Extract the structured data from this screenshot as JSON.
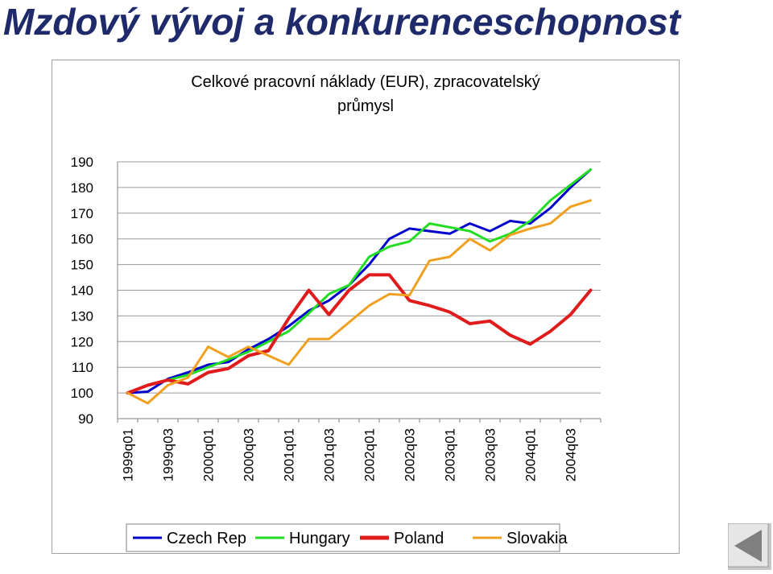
{
  "slide": {
    "title": "Mzdový vývoj a konkurenceschopnost"
  },
  "chart_data": {
    "type": "line",
    "title_lines": [
      "Celkové pracovní náklady (EUR), zpracovatelský",
      "průmysl"
    ],
    "xlabel": "",
    "ylabel": "",
    "ylim": [
      90,
      190
    ],
    "yticks": [
      90,
      100,
      110,
      120,
      130,
      140,
      150,
      160,
      170,
      180,
      190
    ],
    "grid": true,
    "legend_position": "bottom",
    "x_tick_labels": [
      "1999q01",
      "1999q03",
      "2000q01",
      "2000q03",
      "2001q01",
      "2001q03",
      "2002q01",
      "2002q03",
      "2003q01",
      "2003q03",
      "2004q01",
      "2004q03"
    ],
    "x": [
      "1999q01",
      "1999q02",
      "1999q03",
      "1999q04",
      "2000q01",
      "2000q02",
      "2000q03",
      "2000q04",
      "2001q01",
      "2001q02",
      "2001q03",
      "2001q04",
      "2002q01",
      "2002q02",
      "2002q03",
      "2002q04",
      "2003q01",
      "2003q02",
      "2003q03",
      "2003q04",
      "2004q01",
      "2004q02",
      "2004q03",
      "2004q04"
    ],
    "series": [
      {
        "name": "Czech Rep",
        "color": "#0000cc",
        "values": [
          100,
          100.5,
          105.5,
          108,
          111,
          112,
          117,
          121,
          126,
          132,
          136,
          142,
          150,
          160,
          164,
          163,
          162,
          166,
          163,
          167,
          166,
          172,
          180,
          187
        ]
      },
      {
        "name": "Hungary",
        "color": "#22dd22",
        "values": [
          100,
          103,
          105,
          107,
          110,
          113,
          116,
          120,
          124,
          131,
          138.5,
          142,
          153,
          157,
          159,
          166,
          164.5,
          163,
          159,
          162,
          167,
          175,
          181,
          187
        ]
      },
      {
        "name": "Poland",
        "color": "#e01b1b",
        "values": [
          100,
          103,
          105,
          103.5,
          108,
          109.5,
          114.5,
          116.5,
          129,
          140,
          130.5,
          140,
          146,
          146,
          136,
          134,
          131.5,
          127,
          128,
          122.5,
          119,
          124,
          130.5,
          140
        ]
      },
      {
        "name": "Slovakia",
        "color": "#f0a020",
        "values": [
          100,
          96,
          103,
          106,
          118,
          114,
          118,
          114.5,
          111,
          121,
          121,
          127.5,
          134,
          138.5,
          138,
          151.5,
          153,
          160,
          155.5,
          161.5,
          164,
          166,
          172.5,
          175
        ]
      }
    ]
  },
  "nav": {
    "icon": "previous-slide-arrow"
  }
}
